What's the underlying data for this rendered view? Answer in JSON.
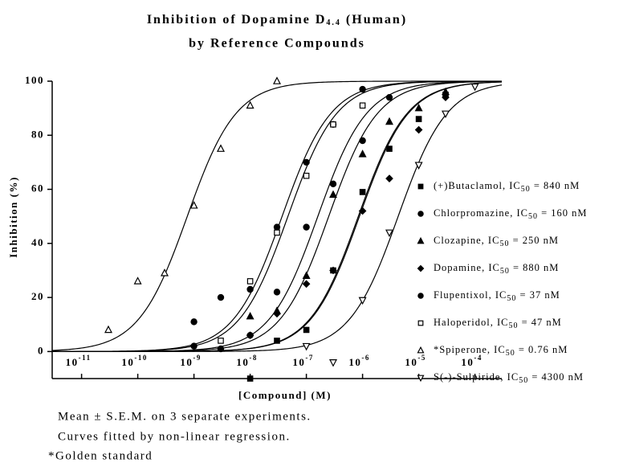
{
  "chart_data": {
    "type": "dose-response",
    "title_lines": [
      "Inhibition of Dopamine D4.4 (Human)",
      "by Reference Compounds"
    ],
    "x_label": "[Compound] (M)",
    "y_label": "Inhibition (%)",
    "log_x": true,
    "xlim": [
      3e-12,
      0.0003
    ],
    "ylim": [
      -10,
      100
    ],
    "xticks": [
      {
        "value": 1e-11,
        "label": "10",
        "exponent": "-11"
      },
      {
        "value": 1e-10,
        "label": "10",
        "exponent": "-10"
      },
      {
        "value": 1e-09,
        "label": "10",
        "exponent": "-9"
      },
      {
        "value": 1e-08,
        "label": "10",
        "exponent": "-8"
      },
      {
        "value": 1e-07,
        "label": "10",
        "exponent": "-7"
      },
      {
        "value": 1e-06,
        "label": "10",
        "exponent": "-6"
      },
      {
        "value": 1e-05,
        "label": "10",
        "exponent": "-5"
      },
      {
        "value": 0.0001,
        "label": "10",
        "exponent": "-4"
      }
    ],
    "yticks": [
      0,
      20,
      40,
      60,
      80,
      100
    ],
    "series": [
      {
        "name": "(+)Butaclamol, IC50 = 840 nM",
        "marker": "square",
        "filled": true,
        "ic50": 8.4e-07,
        "x": [
          1e-08,
          3e-08,
          1e-07,
          3e-07,
          1e-06,
          3e-06,
          1e-05,
          3e-05
        ],
        "values": [
          -10,
          4,
          8,
          30,
          59,
          75,
          86,
          95
        ]
      },
      {
        "name": "Chlorpromazine, IC50 = 160 nM",
        "marker": "circle",
        "filled": true,
        "ic50": 1.6e-07,
        "x": [
          1e-09,
          3e-09,
          1e-08,
          3e-08,
          1e-07,
          3e-07,
          1e-06,
          3e-06
        ],
        "values": [
          2,
          1,
          6,
          22,
          46,
          62,
          78,
          94
        ]
      },
      {
        "name": "Clozapine, IC50 = 250 nM",
        "marker": "triangle",
        "filled": true,
        "ic50": 2.5e-07,
        "x": [
          1e-08,
          3e-08,
          1e-07,
          3e-07,
          1e-06,
          3e-06,
          1e-05,
          3e-05
        ],
        "values": [
          13,
          15,
          28,
          58,
          73,
          85,
          90,
          96
        ]
      },
      {
        "name": "Dopamine, IC50 = 880 nM",
        "marker": "diamond",
        "filled": true,
        "ic50": 8.8e-07,
        "x": [
          1e-08,
          3e-08,
          1e-07,
          3e-07,
          1e-06,
          3e-06,
          1e-05,
          3e-05
        ],
        "values": [
          6,
          14,
          25,
          30,
          52,
          64,
          82,
          94
        ]
      },
      {
        "name": "Flupentixol, IC50 = 37 nM",
        "marker": "circle",
        "filled": true,
        "ic50": 3.7e-08,
        "x": [
          1e-09,
          3e-09,
          1e-08,
          3e-08,
          1e-07,
          3e-07,
          1e-06
        ],
        "values": [
          11,
          20,
          23,
          46,
          70,
          84,
          97
        ]
      },
      {
        "name": "Haloperidol, IC50 = 47 nM",
        "marker": "square",
        "filled": false,
        "ic50": 4.7e-08,
        "x": [
          3e-09,
          1e-08,
          3e-08,
          1e-07,
          3e-07,
          1e-06
        ],
        "values": [
          4,
          26,
          44,
          65,
          84,
          91
        ]
      },
      {
        "name": "*Spiperone, IC50 = 0.76 nM",
        "marker": "triangle",
        "filled": false,
        "ic50": 7.6e-10,
        "x": [
          3e-11,
          1e-10,
          3e-10,
          1e-09,
          3e-09,
          1e-08,
          3e-08
        ],
        "values": [
          8,
          26,
          29,
          54,
          75,
          91,
          100
        ]
      },
      {
        "name": "S(-)-Sulpiride, IC50 = 4300 nM",
        "marker": "triangle-down",
        "filled": false,
        "ic50": 4.3e-06,
        "x": [
          1e-07,
          3e-07,
          1e-06,
          3e-06,
          1e-05,
          3e-05,
          0.0001
        ],
        "values": [
          2,
          -4,
          19,
          44,
          69,
          88,
          98
        ]
      }
    ],
    "notes": [
      "Mean ± S.E.M. on 3 separate experiments.",
      "Curves fitted by non-linear regression.",
      "*Golden standard"
    ]
  }
}
